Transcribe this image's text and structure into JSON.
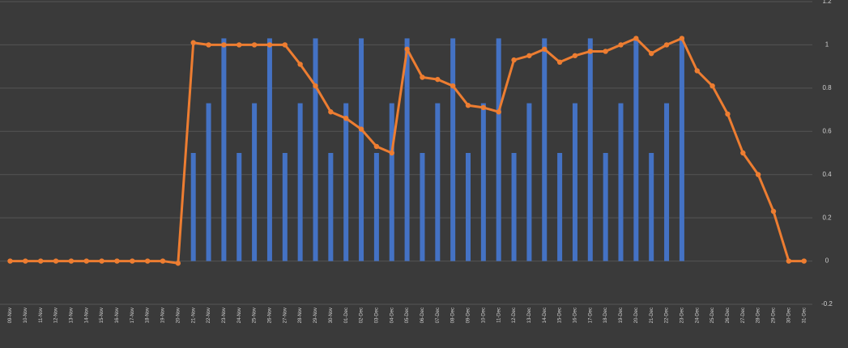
{
  "chart_data": {
    "type": "bar+line",
    "categories": [
      "09-Nov",
      "10-Nov",
      "11-Nov",
      "12-Nov",
      "13-Nov",
      "14-Nov",
      "15-Nov",
      "16-Nov",
      "17-Nov",
      "18-Nov",
      "19-Nov",
      "20-Nov",
      "21-Nov",
      "22-Nov",
      "23-Nov",
      "24-Nov",
      "25-Nov",
      "26-Nov",
      "27-Nov",
      "28-Nov",
      "29-Nov",
      "30-Nov",
      "01-Dec",
      "02-Dec",
      "03-Dec",
      "04-Dec",
      "05-Dec",
      "06-Dec",
      "07-Dec",
      "08-Dec",
      "09-Dec",
      "10-Dec",
      "11-Dec",
      "12-Dec",
      "13-Dec",
      "14-Dec",
      "15-Dec",
      "16-Dec",
      "17-Dec",
      "18-Dec",
      "19-Dec",
      "20-Dec",
      "21-Dec",
      "22-Dec",
      "23-Dec",
      "24-Dec",
      "25-Dec",
      "26-Dec",
      "27-Dec",
      "28-Dec",
      "29-Dec",
      "30-Dec",
      "31-Dec"
    ],
    "series": [
      {
        "type": "bar",
        "color": "#4472c4",
        "values": [
          null,
          null,
          null,
          null,
          null,
          null,
          null,
          null,
          null,
          null,
          null,
          null,
          0.5,
          0.73,
          1.03,
          0.5,
          0.73,
          1.03,
          0.5,
          0.73,
          1.03,
          0.5,
          0.73,
          1.03,
          0.5,
          0.73,
          1.03,
          0.5,
          0.73,
          1.03,
          0.5,
          0.73,
          1.03,
          0.5,
          0.73,
          1.03,
          0.5,
          0.73,
          1.03,
          0.5,
          0.73,
          1.03,
          0.5,
          0.73,
          1.03,
          null,
          null,
          null,
          null,
          null,
          null,
          null,
          null
        ]
      },
      {
        "type": "line",
        "color": "#ed7d31",
        "values": [
          0,
          0,
          0,
          0,
          0,
          0,
          0,
          0,
          0,
          0,
          0,
          -0.01,
          1.01,
          1.0,
          1.0,
          1.0,
          1.0,
          1.0,
          1.0,
          0.91,
          0.81,
          0.69,
          0.66,
          0.61,
          0.53,
          0.5,
          0.98,
          0.85,
          0.84,
          0.81,
          0.72,
          0.71,
          0.69,
          0.93,
          0.95,
          0.98,
          0.92,
          0.95,
          0.97,
          0.97,
          1.0,
          1.03,
          0.96,
          1.0,
          1.03,
          0.88,
          0.81,
          0.68,
          0.5,
          0.4,
          0.23,
          0,
          0
        ]
      }
    ],
    "ylim": [
      -0.2,
      1.2
    ],
    "yticks": [
      -0.2,
      0,
      0.2,
      0.4,
      0.6,
      0.8,
      1,
      1.2
    ],
    "grid": true,
    "y_axis_side": "right"
  }
}
